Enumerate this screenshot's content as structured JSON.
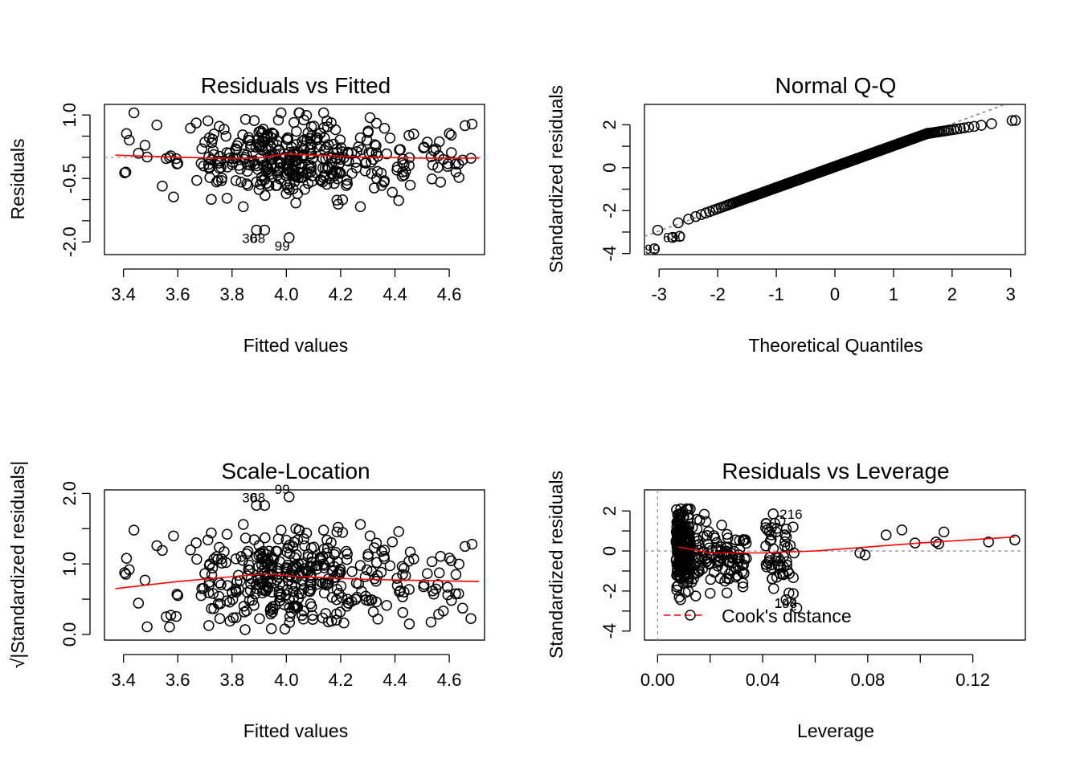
{
  "panels": [
    {
      "id": "rvf",
      "title": "Residuals vs Fitted",
      "xlabel": "Fitted values",
      "ylabel": "Residuals",
      "xticks": [
        "3.4",
        "3.6",
        "3.8",
        "4.0",
        "4.2",
        "4.4",
        "4.6"
      ],
      "yticks": [
        "-2.0",
        "-0.5",
        "1.0"
      ]
    },
    {
      "id": "qq",
      "title": "Normal Q-Q",
      "xlabel": "Theoretical Quantiles",
      "ylabel": "Standardized residuals",
      "xticks": [
        "-3",
        "-2",
        "-1",
        "0",
        "1",
        "2",
        "3"
      ],
      "yticks": [
        "-4",
        "-2",
        "0",
        "2"
      ]
    },
    {
      "id": "sl",
      "title": "Scale-Location",
      "xlabel": "Fitted values",
      "ylabel": "√|Standardized residuals|",
      "xticks": [
        "3.4",
        "3.6",
        "3.8",
        "4.0",
        "4.2",
        "4.4",
        "4.6"
      ],
      "yticks": [
        "0.0",
        "1.0",
        "2.0"
      ]
    },
    {
      "id": "rvl",
      "title": "Residuals vs Leverage",
      "xlabel": "Leverage",
      "ylabel": "Standardized residuals",
      "xticks": [
        "0.00",
        "0.04",
        "0.08",
        "0.12"
      ],
      "yticks": [
        "-4",
        "-2",
        "0",
        "2"
      ],
      "legend": "Cook's distance"
    }
  ],
  "chart_data": [
    {
      "type": "scatter",
      "title": "Residuals vs Fitted",
      "xlabel": "Fitted values",
      "ylabel": "Residuals",
      "xlim": [
        3.33,
        4.73
      ],
      "ylim": [
        -2.3,
        1.25
      ],
      "x_ticks": [
        3.4,
        3.6,
        3.8,
        4.0,
        4.2,
        4.4,
        4.6
      ],
      "y_ticks": [
        -2.0,
        -1.5,
        -1.0,
        -0.5,
        0.0,
        0.5,
        1.0
      ],
      "reference_line_y": 0,
      "smoother": [
        [
          3.37,
          0.05
        ],
        [
          3.6,
          0.0
        ],
        [
          3.8,
          -0.03
        ],
        [
          3.9,
          -0.01
        ],
        [
          4.0,
          0.08
        ],
        [
          4.1,
          0.05
        ],
        [
          4.3,
          0.0
        ],
        [
          4.5,
          -0.02
        ],
        [
          4.71,
          -0.02
        ]
      ],
      "labeled_points": [
        {
          "label": "99",
          "x": 4.01,
          "y": -1.9
        },
        {
          "label": "68",
          "x": 3.92,
          "y": -1.72
        },
        {
          "label": "30",
          "x": 3.89,
          "y": -1.72
        }
      ],
      "points_generated": 400,
      "x_range": [
        3.37,
        4.71
      ],
      "y_range": [
        -1.6,
        1.05
      ],
      "color": "#000000",
      "smoother_color": "#ff0000"
    },
    {
      "type": "scatter",
      "title": "Normal Q-Q",
      "xlabel": "Theoretical Quantiles",
      "ylabel": "Standardized residuals",
      "xlim": [
        -3.25,
        3.25
      ],
      "ylim": [
        -4.05,
        2.95
      ],
      "x_ticks": [
        -3,
        -2,
        -1,
        0,
        1,
        2,
        3
      ],
      "y_ticks": [
        -4,
        -3,
        -2,
        -1,
        0,
        1,
        2
      ],
      "reference_line": {
        "intercept": 0.05,
        "slope": 1.0
      },
      "labeled_points": [
        {
          "label": "99",
          "x": -3.08,
          "y": -3.78
        },
        {
          "label": "68",
          "x": -2.77,
          "y": -3.25
        },
        {
          "label": "30",
          "x": -2.65,
          "y": -3.2
        }
      ],
      "points_generated": 400,
      "upper_point": [
        3.08,
        2.2
      ],
      "color": "#000000",
      "reference_color": "#888888"
    },
    {
      "type": "scatter",
      "title": "Scale-Location",
      "xlabel": "Fitted values",
      "ylabel": "√|Standardized residuals|",
      "xlim": [
        3.33,
        4.73
      ],
      "ylim": [
        -0.08,
        2.05
      ],
      "x_ticks": [
        3.4,
        3.6,
        3.8,
        4.0,
        4.2,
        4.4,
        4.6
      ],
      "y_ticks": [
        0.0,
        0.5,
        1.0,
        1.5,
        2.0
      ],
      "smoother": [
        [
          3.37,
          0.65
        ],
        [
          3.6,
          0.75
        ],
        [
          3.8,
          0.82
        ],
        [
          3.92,
          0.86
        ],
        [
          4.05,
          0.82
        ],
        [
          4.3,
          0.78
        ],
        [
          4.71,
          0.75
        ]
      ],
      "labeled_points": [
        {
          "label": "99",
          "x": 4.01,
          "y": 1.95
        },
        {
          "label": "68",
          "x": 3.92,
          "y": 1.83
        },
        {
          "label": "30",
          "x": 3.89,
          "y": 1.83
        }
      ],
      "points_generated": 400,
      "color": "#000000",
      "smoother_color": "#ff0000"
    },
    {
      "type": "scatter",
      "title": "Residuals vs Leverage",
      "xlabel": "Leverage",
      "ylabel": "Standardized residuals",
      "legend": "Cook's distance",
      "xlim": [
        -0.005,
        0.14
      ],
      "ylim": [
        -4.45,
        3.05
      ],
      "x_ticks": [
        0.0,
        0.02,
        0.04,
        0.06,
        0.08,
        0.1,
        0.12
      ],
      "y_ticks": [
        -4,
        -3,
        -2,
        -1,
        0,
        1,
        2
      ],
      "reference_line_y": 0,
      "reference_line_x": 0,
      "smoother": [
        [
          0.008,
          0.2
        ],
        [
          0.02,
          -0.1
        ],
        [
          0.04,
          -0.1
        ],
        [
          0.06,
          0.0
        ],
        [
          0.1,
          0.4
        ],
        [
          0.136,
          0.7
        ]
      ],
      "labeled_points": [
        {
          "label": "216",
          "x": 0.044,
          "y": 1.85
        },
        {
          "label": "144",
          "x": 0.05,
          "y": -2.1
        },
        {
          "label": "198",
          "x": 0.053,
          "y": -2.85
        }
      ],
      "points_generated": 400,
      "high_leverage_points": [
        [
          0.077,
          -0.1
        ],
        [
          0.079,
          -0.2
        ],
        [
          0.087,
          0.8
        ],
        [
          0.093,
          1.05
        ],
        [
          0.098,
          0.4
        ],
        [
          0.106,
          0.45
        ],
        [
          0.107,
          0.35
        ],
        [
          0.109,
          0.95
        ],
        [
          0.126,
          0.45
        ],
        [
          0.136,
          0.55
        ]
      ],
      "color": "#000000",
      "smoother_color": "#ff0000"
    }
  ]
}
